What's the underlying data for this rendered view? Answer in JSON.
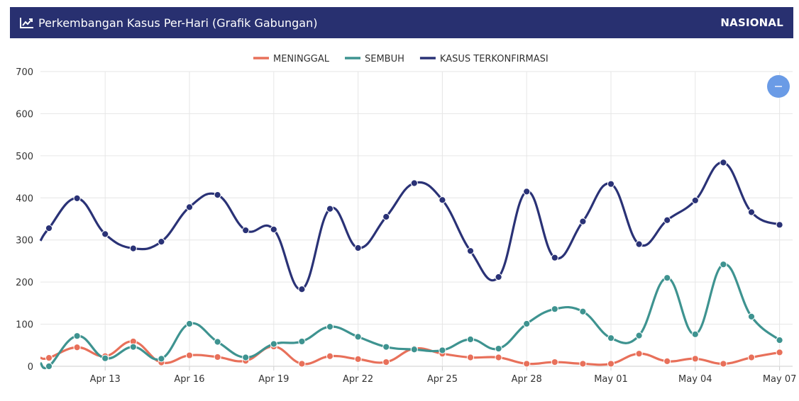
{
  "header": {
    "icon": "line-chart-icon",
    "title": "Perkembangan Kasus Per-Hari (Grafik Gabungan)",
    "badge": "NASIONAL"
  },
  "zoom_button": {
    "icon": "minus-icon",
    "label": "−",
    "color": "#6a9be6"
  },
  "chart_data": {
    "type": "line",
    "x": [
      "Apr 11",
      "Apr 12",
      "Apr 13",
      "Apr 14",
      "Apr 15",
      "Apr 16",
      "Apr 17",
      "Apr 18",
      "Apr 19",
      "Apr 20",
      "Apr 21",
      "Apr 22",
      "Apr 23",
      "Apr 24",
      "Apr 25",
      "Apr 26",
      "Apr 27",
      "Apr 28",
      "Apr 29",
      "Apr 30",
      "May 01",
      "May 02",
      "May 03",
      "May 04",
      "May 05",
      "May 06",
      "May 07"
    ],
    "x_tick_labels": [
      "Apr 13",
      "Apr 16",
      "Apr 19",
      "Apr 22",
      "Apr 25",
      "Apr 28",
      "May 01",
      "May 04",
      "May 07"
    ],
    "ylim": [
      0,
      700
    ],
    "y_ticks": [
      0,
      100,
      200,
      300,
      400,
      500,
      600,
      700
    ],
    "grid": true,
    "legend_position": "top-center",
    "series": [
      {
        "name": "MENINGGAL",
        "color": "#e8705a",
        "start": {
          "x": "Apr 10.7",
          "y": 20
        },
        "values": [
          20,
          45,
          24,
          59,
          9,
          26,
          22,
          13,
          47,
          6,
          24,
          17,
          10,
          42,
          30,
          21,
          21,
          6,
          10,
          6,
          6,
          30,
          12,
          18,
          6,
          21,
          33
        ]
      },
      {
        "name": "SEMBUH",
        "color": "#3e9390",
        "start": {
          "x": "Apr 10.7",
          "y": 8
        },
        "values": [
          0,
          72,
          19,
          46,
          18,
          101,
          58,
          21,
          53,
          59,
          94,
          70,
          46,
          40,
          38,
          64,
          42,
          101,
          136,
          130,
          67,
          73,
          210,
          76,
          242,
          118,
          62
        ]
      },
      {
        "name": "KASUS TERKONFIRMASI",
        "color": "#2a3276",
        "start": {
          "x": "Apr 10.7",
          "y": 298
        },
        "values": [
          328,
          399,
          314,
          280,
          296,
          378,
          407,
          323,
          325,
          183,
          374,
          281,
          355,
          435,
          395,
          274,
          212,
          415,
          258,
          344,
          433,
          290,
          347,
          394,
          484,
          366,
          336
        ]
      }
    ]
  }
}
